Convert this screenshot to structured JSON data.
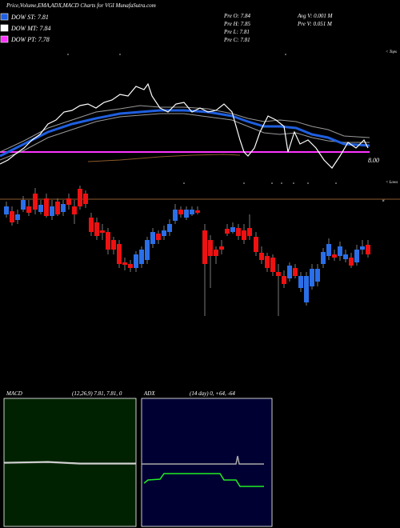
{
  "header": {
    "title": "Price,Volume,EMA,ADX,MACD Charts for VGI MunafaSutra.com"
  },
  "legend": [
    {
      "label": "DOW ST: 7.81"
    },
    {
      "label": "DOW MT: 7.84"
    },
    {
      "label": "DOW PT: 7.78"
    }
  ],
  "info": {
    "left": [
      "Pre  O: 7.84",
      "Pre  H: 7.85",
      "Pre  L: 7.81",
      "Pre  C: 7.81"
    ],
    "right": [
      "Avg V: 0.001 M",
      "Pre  V: 0.051 M"
    ]
  },
  "labels": {
    "tops": "< Tops",
    "lows": "< Lows",
    "level": "8.00",
    "level_small": "8"
  },
  "macd": {
    "name": "MACD",
    "params": "(12,26,9) 7.81, 7.81, 0"
  },
  "adx": {
    "name": "ADX",
    "params": "(14  day) 0, +64, -64"
  }
}
